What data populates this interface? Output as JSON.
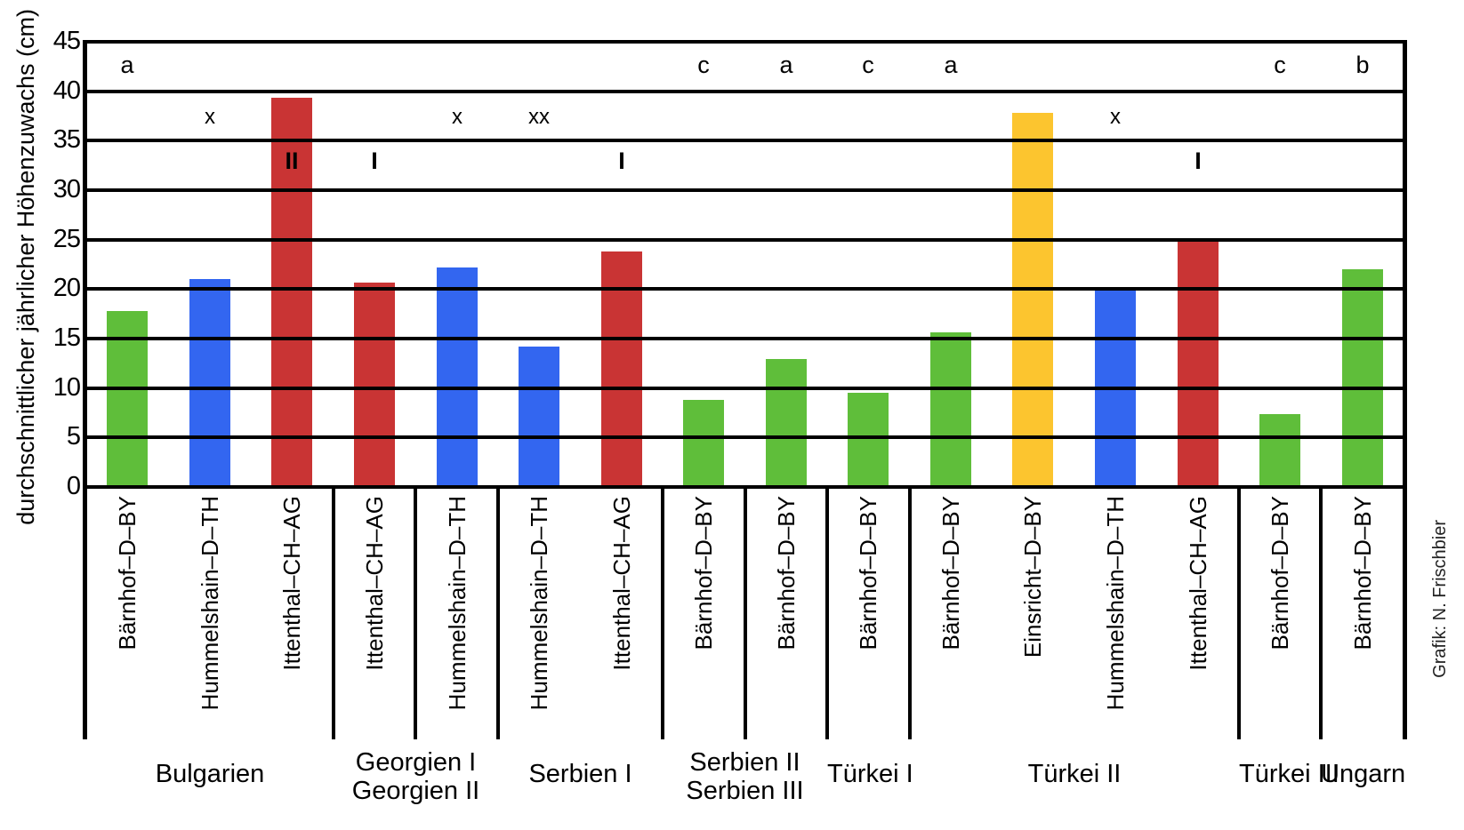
{
  "chart_data": {
    "type": "bar",
    "title": "",
    "ylabel": "durchschnittlicher jährlicher Höhenzuwachs (cm)",
    "xlabel": "",
    "ylim": [
      0,
      45
    ],
    "yticks": [
      0,
      5,
      10,
      15,
      20,
      25,
      30,
      35,
      40,
      45
    ],
    "grid": "horizontal-black-lines",
    "legend": "none",
    "credit": "Grafik: N. Frischbier",
    "colors": {
      "green": "#5FBE3A",
      "blue": "#3366F0",
      "red": "#C93434",
      "yellow": "#FCC52F",
      "line": "#000000",
      "background": "#FFFFFF"
    },
    "bars": [
      {
        "provenance": "Bärnhof–D–BY",
        "group": "Bulgarien",
        "value": 17.8,
        "color": "green",
        "marker": "a",
        "marker_row": "letter"
      },
      {
        "provenance": "Hummelshain–D–TH",
        "group": "Bulgarien",
        "value": 21.0,
        "color": "blue",
        "marker": "x",
        "marker_row": "x"
      },
      {
        "provenance": "Ittenthal–CH–AG",
        "group": "Bulgarien",
        "value": 39.3,
        "color": "red",
        "marker": "II",
        "marker_row": "roman"
      },
      {
        "provenance": "Ittenthal–CH–AG",
        "group": "Georgien I",
        "value": 20.7,
        "color": "red",
        "marker": "I",
        "marker_row": "roman"
      },
      {
        "provenance": "Hummelshain–D–TH",
        "group": "Georgien II",
        "value": 22.2,
        "color": "blue",
        "marker": "x",
        "marker_row": "x"
      },
      {
        "provenance": "Hummelshain–D–TH",
        "group": "Serbien I",
        "value": 14.2,
        "color": "blue",
        "marker": "xx",
        "marker_row": "x"
      },
      {
        "provenance": "Ittenthal–CH–AG",
        "group": "Serbien I",
        "value": 23.8,
        "color": "red",
        "marker": "I",
        "marker_row": "roman"
      },
      {
        "provenance": "Bärnhof–D–BY",
        "group": "Serbien II",
        "value": 8.8,
        "color": "green",
        "marker": "c",
        "marker_row": "letter"
      },
      {
        "provenance": "Bärnhof–D–BY",
        "group": "Serbien III",
        "value": 12.9,
        "color": "green",
        "marker": "a",
        "marker_row": "letter"
      },
      {
        "provenance": "Bärnhof–D–BY",
        "group": "Türkei I",
        "value": 9.5,
        "color": "green",
        "marker": "c",
        "marker_row": "letter"
      },
      {
        "provenance": "Bärnhof–D–BY",
        "group": "Türkei II",
        "value": 15.6,
        "color": "green",
        "marker": "a",
        "marker_row": "letter"
      },
      {
        "provenance": "Einsricht–D–BY",
        "group": "Türkei II",
        "value": 37.8,
        "color": "yellow",
        "marker": "",
        "marker_row": ""
      },
      {
        "provenance": "Hummelshain–D–TH",
        "group": "Türkei II",
        "value": 20.0,
        "color": "blue",
        "marker": "x",
        "marker_row": "x"
      },
      {
        "provenance": "Ittenthal–CH–AG",
        "group": "Türkei II",
        "value": 25.0,
        "color": "red",
        "marker": "I",
        "marker_row": "roman"
      },
      {
        "provenance": "Bärnhof–D–BY",
        "group": "Türkei III",
        "value": 7.4,
        "color": "green",
        "marker": "c",
        "marker_row": "letter"
      },
      {
        "provenance": "Bärnhof–D–BY",
        "group": "Ungarn",
        "value": 22.0,
        "color": "green",
        "marker": "b",
        "marker_row": "letter"
      }
    ],
    "separators_after_slots": [
      2,
      3,
      4,
      6,
      7,
      8,
      9,
      13,
      14
    ],
    "group_labels": [
      {
        "lines": [
          "Bulgarien"
        ],
        "from_slot": 0,
        "to_slot": 2
      },
      {
        "lines": [
          "Georgien I",
          "Georgien II"
        ],
        "from_slot": 3,
        "to_slot": 4
      },
      {
        "lines": [
          "Serbien I"
        ],
        "from_slot": 5,
        "to_slot": 6
      },
      {
        "lines": [
          "Serbien II",
          "Serbien III"
        ],
        "from_slot": 7,
        "to_slot": 8
      },
      {
        "lines": [
          "Türkei I"
        ],
        "from_slot": 9,
        "to_slot": 9
      },
      {
        "lines": [
          "Türkei II"
        ],
        "from_slot": 10,
        "to_slot": 13
      },
      {
        "lines": [
          "Türkei III"
        ],
        "from_slot": 14,
        "to_slot": 14
      },
      {
        "lines": [
          "Ungarn"
        ],
        "from_slot": 15,
        "to_slot": 15
      }
    ]
  }
}
